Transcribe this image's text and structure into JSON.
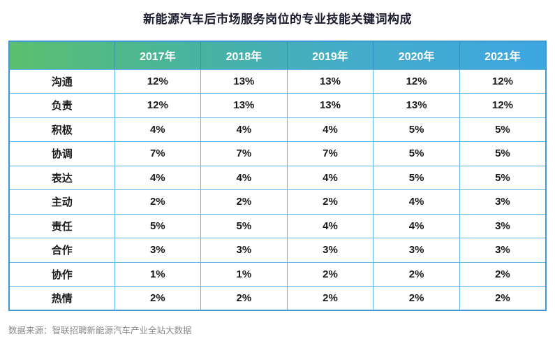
{
  "title": "新能源汽车后市场服务岗位的专业技能关键词构成",
  "source_note": "数据来源：智联招聘新能源汽车产业全站大数据",
  "colors": {
    "header_gradient_start": "#5cbf6e",
    "header_gradient_end": "#3ea6e0",
    "outer_border": "#3f97d4",
    "inner_border": "#5fb5e8",
    "header_text": "#ffffff",
    "title_text": "#1a1a2e",
    "cell_text": "#1a1a1a",
    "source_text": "#8a8a8a"
  },
  "chart_data": {
    "type": "table",
    "title": "新能源汽车后市场服务岗位的专业技能关键词构成",
    "columns": [
      "",
      "2017年",
      "2018年",
      "2019年",
      "2020年",
      "2021年"
    ],
    "rows": [
      {
        "label": "沟通",
        "values": [
          "12%",
          "13%",
          "13%",
          "12%",
          "12%"
        ]
      },
      {
        "label": "负责",
        "values": [
          "12%",
          "13%",
          "13%",
          "13%",
          "12%"
        ]
      },
      {
        "label": "积极",
        "values": [
          "4%",
          "4%",
          "4%",
          "5%",
          "5%"
        ]
      },
      {
        "label": "协调",
        "values": [
          "7%",
          "7%",
          "7%",
          "5%",
          "5%"
        ]
      },
      {
        "label": "表达",
        "values": [
          "4%",
          "4%",
          "4%",
          "5%",
          "5%"
        ]
      },
      {
        "label": "主动",
        "values": [
          "2%",
          "2%",
          "2%",
          "4%",
          "3%"
        ]
      },
      {
        "label": "责任",
        "values": [
          "5%",
          "5%",
          "4%",
          "4%",
          "3%"
        ]
      },
      {
        "label": "合作",
        "values": [
          "3%",
          "3%",
          "3%",
          "3%",
          "3%"
        ]
      },
      {
        "label": "协作",
        "values": [
          "1%",
          "1%",
          "2%",
          "2%",
          "2%"
        ]
      },
      {
        "label": "热情",
        "values": [
          "2%",
          "2%",
          "2%",
          "2%",
          "2%"
        ]
      }
    ]
  }
}
